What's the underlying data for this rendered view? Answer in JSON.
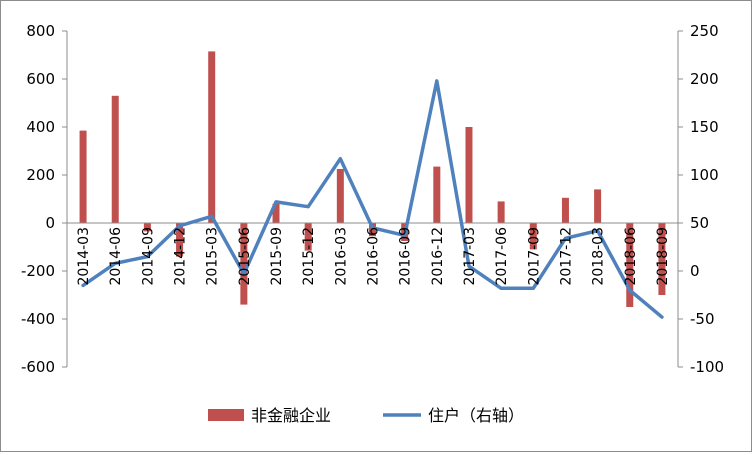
{
  "chart_data": {
    "type": "bar+line",
    "categories": [
      "2014-03",
      "2014-06",
      "2014-09",
      "2014-12",
      "2015-03",
      "2015-06",
      "2015-09",
      "2015-12",
      "2016-03",
      "2016-06",
      "2016-09",
      "2016-12",
      "2017-03",
      "2017-06",
      "2017-09",
      "2017-12",
      "2018-03",
      "2018-06",
      "2018-09"
    ],
    "series": [
      {
        "name": "非金融企业",
        "type": "bar",
        "axis": "left",
        "color": "#C0504D",
        "values": [
          385,
          530,
          -35,
          -140,
          715,
          -340,
          80,
          -115,
          225,
          -55,
          -75,
          235,
          400,
          90,
          -110,
          105,
          140,
          -350,
          -300
        ]
      },
      {
        "name": "住户（右轴）",
        "type": "line",
        "axis": "right",
        "color": "#4F81BD",
        "values": [
          -15,
          8,
          15,
          47,
          57,
          -3,
          72,
          67,
          117,
          45,
          37,
          198,
          5,
          -18,
          -18,
          34,
          42,
          -20,
          -48
        ]
      }
    ],
    "y_left": {
      "min": -600,
      "max": 800,
      "step": 200,
      "ticks": [
        "800",
        "600",
        "400",
        "200",
        "0",
        "-200",
        "-400",
        "-600"
      ]
    },
    "y_right": {
      "min": -100,
      "max": 250,
      "step": 50,
      "ticks": [
        "250",
        "200",
        "150",
        "100",
        "50",
        "0",
        "-50",
        "-100"
      ]
    },
    "grid": false,
    "legend_position": "bottom"
  }
}
